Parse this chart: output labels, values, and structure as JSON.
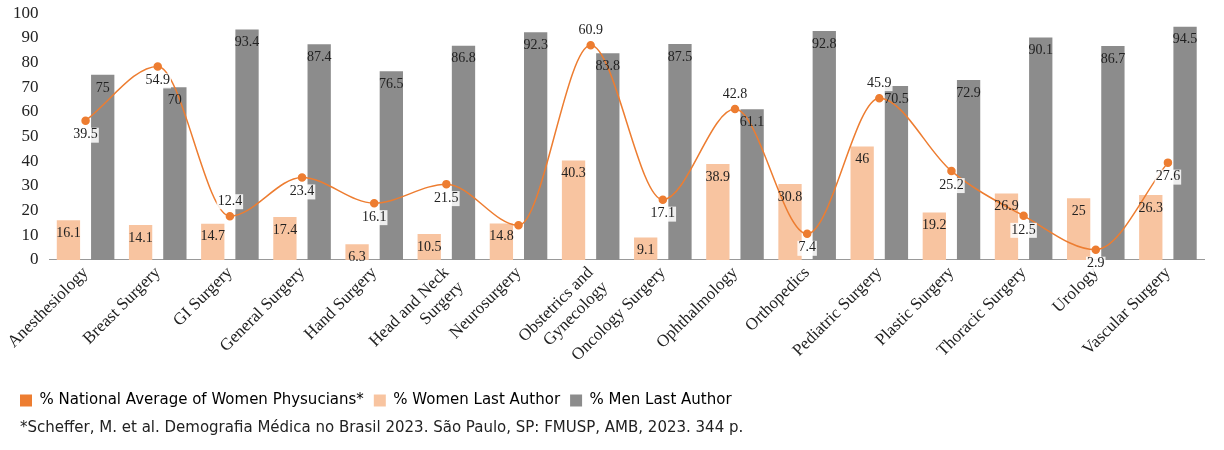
{
  "chart_data": {
    "type": "bar",
    "categories": [
      "Anesthesiology",
      "Breast Surgery",
      "GI Surgery",
      "General Surgery",
      "Hand Surgery",
      "Head and Neck\nSurgery",
      "Neurosurgery",
      "Obstetrics and\nGynecology",
      "Oncology Surgery",
      "Ophthalmology",
      "Orthopedics",
      "Pediatric Surgery",
      "Plastic Surgery",
      "Thoracic Surgery",
      "Urology",
      "Vascular Surgery"
    ],
    "series": [
      {
        "name": "% National Average of Women Physucians*",
        "type": "line",
        "axis": "y2",
        "color": "#ed7d31",
        "values": [
          39.5,
          54.9,
          12.4,
          23.4,
          16.1,
          21.5,
          9.8,
          60.9,
          17.1,
          42.8,
          7.4,
          45.9,
          25.2,
          12.5,
          2.9,
          27.6
        ],
        "value_labels": [
          "39.5",
          "54.9",
          "12.4",
          "23.4",
          "16.1",
          "21.5",
          null,
          "60.9",
          "17.1",
          "42.8",
          "7.4",
          "45.9",
          "25.2",
          "12.5",
          "2.9",
          "27.6"
        ]
      },
      {
        "name": "% Women Last Author",
        "color": "#f8c4a0",
        "values": [
          16.1,
          14.1,
          14.7,
          17.4,
          6.3,
          10.5,
          14.8,
          40.3,
          9.1,
          38.9,
          30.8,
          46,
          19.2,
          26.9,
          25,
          26.3
        ],
        "value_labels": [
          "16.1",
          "14.1",
          "14.7",
          "17.4",
          "6.3",
          "10.5",
          "14.8",
          "40.3",
          "9.1",
          "38.9",
          "30.8",
          "46",
          "19.2",
          "26.9",
          "25",
          "26.3"
        ]
      },
      {
        "name": "% Men Last Author",
        "color": "#8c8c8c",
        "values": [
          75,
          70,
          93.4,
          87.4,
          76.5,
          86.8,
          92.3,
          83.8,
          87.5,
          61.1,
          92.8,
          70.5,
          72.9,
          90.1,
          86.7,
          94.5
        ],
        "value_labels": [
          "75",
          "70",
          "93.4",
          "87.4",
          "76.5",
          "86.8",
          "92.3",
          "83.8",
          "87.5",
          "61.1",
          "92.8",
          "70.5",
          "72.9",
          "90.1",
          "86.7",
          "94.5"
        ]
      }
    ],
    "ylim": [
      0,
      100
    ],
    "yticks": [
      0,
      10,
      20,
      30,
      40,
      50,
      60,
      70,
      80,
      90,
      100
    ],
    "grid": false,
    "legend": "bottom left",
    "marker": "circle",
    "annotations": [
      "*Scheffer, M. et al. Demografia Médica no Brasil 2023. São Paulo, SP: FMUSP, AMB, 2023. 344 p."
    ]
  }
}
